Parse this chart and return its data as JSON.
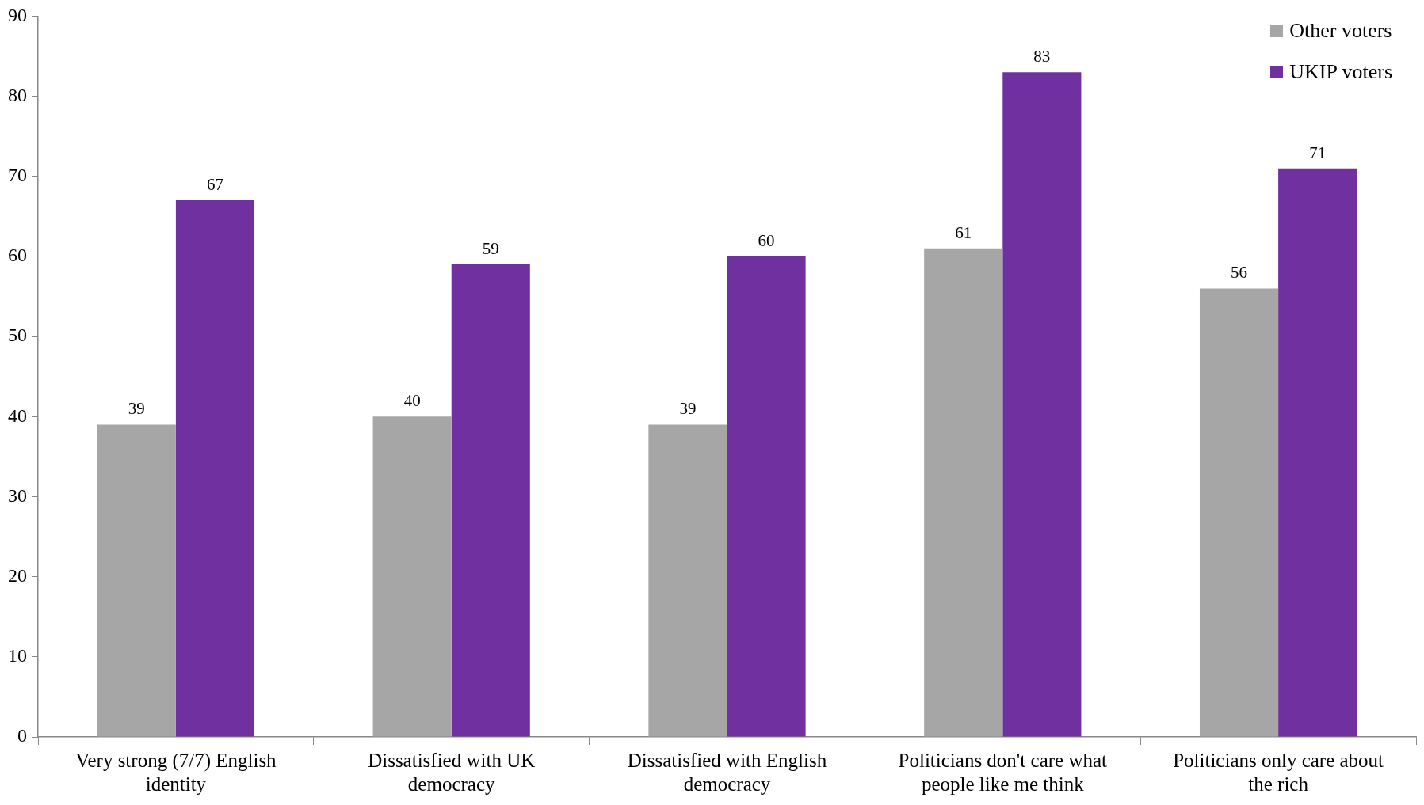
{
  "chart_data": {
    "type": "bar",
    "categories": [
      "Very strong (7/7) English identity",
      "Dissatisfied with UK democracy",
      "Dissatisfied with English democracy",
      "Politicians don't care what people like me think",
      "Politicians only care about the rich"
    ],
    "series": [
      {
        "name": "Other voters",
        "color": "#a6a6a6",
        "values": [
          39,
          40,
          39,
          61,
          56
        ]
      },
      {
        "name": "UKIP voters",
        "color": "#7030a0",
        "values": [
          67,
          59,
          60,
          83,
          71
        ]
      }
    ],
    "ylim": [
      0,
      90
    ],
    "yticks": [
      0,
      10,
      20,
      30,
      40,
      50,
      60,
      70,
      80,
      90
    ],
    "grid": false,
    "legend": "top right",
    "data_labels": true
  }
}
